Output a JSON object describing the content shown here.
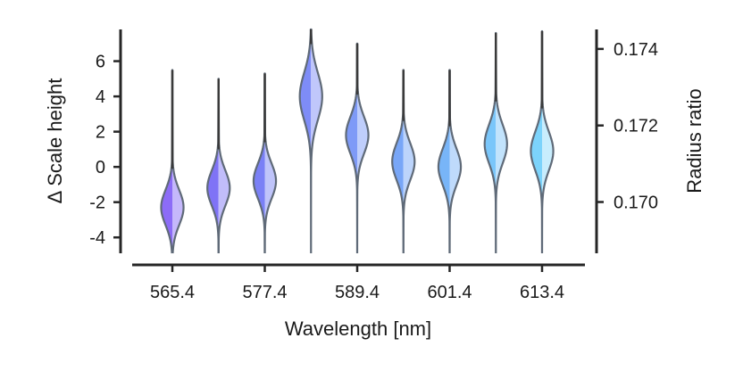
{
  "chart_data": {
    "type": "violin",
    "xlabel": "Wavelength [nm]",
    "ylabel": "Δ Scale height",
    "y2label": "Radius ratio",
    "xticks": [
      "565.4",
      "577.4",
      "589.4",
      "601.4",
      "613.4"
    ],
    "ylim": [
      -4.9,
      7.8
    ],
    "yticks": [
      6,
      4,
      2,
      0,
      -2,
      -4
    ],
    "ytick_labels": [
      "6",
      "4",
      "2",
      "0",
      "-2",
      "-4"
    ],
    "y2lim": [
      0.16866,
      0.17451
    ],
    "y2ticks": [
      0.174,
      0.172,
      0.17
    ],
    "y2tick_labels": [
      "0.174",
      "0.172",
      "0.170"
    ],
    "series": [
      {
        "wavelength": 565.4,
        "median": -2.3,
        "spread": 1.0,
        "width": 0.62,
        "max": 5.5,
        "color_dark": "#8c6cf7",
        "color_light": "#c5b8fb"
      },
      {
        "wavelength": 571.4,
        "median": -1.2,
        "spread": 1.0,
        "width": 0.62,
        "max": 5.0,
        "color_dark": "#7f73f6",
        "color_light": "#c1bdfa"
      },
      {
        "wavelength": 577.4,
        "median": -0.8,
        "spread": 1.0,
        "width": 0.62,
        "max": 5.3,
        "color_dark": "#7a80f6",
        "color_light": "#bfc4fa"
      },
      {
        "wavelength": 583.4,
        "median": 4.0,
        "spread": 1.35,
        "width": 0.62,
        "max": 7.8,
        "color_dark": "#7e8cf7",
        "color_light": "#c0c7fb"
      },
      {
        "wavelength": 589.4,
        "median": 1.8,
        "spread": 1.05,
        "width": 0.62,
        "max": 7.0,
        "color_dark": "#7e9af7",
        "color_light": "#bfcefb"
      },
      {
        "wavelength": 595.4,
        "median": 0.3,
        "spread": 1.05,
        "width": 0.62,
        "max": 5.5,
        "color_dark": "#78a6f7",
        "color_light": "#bcd4fb"
      },
      {
        "wavelength": 601.4,
        "median": 0.0,
        "spread": 1.05,
        "width": 0.62,
        "max": 5.5,
        "color_dark": "#78b5f8",
        "color_light": "#bfdafb"
      },
      {
        "wavelength": 607.4,
        "median": 1.3,
        "spread": 1.1,
        "width": 0.62,
        "max": 7.6,
        "color_dark": "#7ac6fa",
        "color_light": "#c2e3fc"
      },
      {
        "wavelength": 613.4,
        "median": 0.9,
        "spread": 1.1,
        "width": 0.62,
        "max": 7.7,
        "color_dark": "#7cd3fb",
        "color_light": "#c8edfd"
      }
    ]
  }
}
